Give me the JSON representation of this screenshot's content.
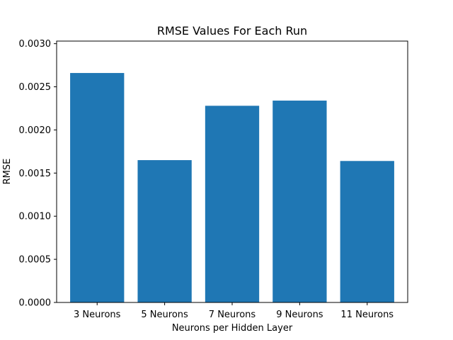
{
  "chart_data": {
    "type": "bar",
    "title": "RMSE Values For Each Run",
    "xlabel": "Neurons per Hidden Layer",
    "ylabel": "RMSE",
    "categories": [
      "3 Neurons",
      "5 Neurons",
      "7 Neurons",
      "9 Neurons",
      "11 Neurons"
    ],
    "values": [
      0.00266,
      0.00165,
      0.00228,
      0.00234,
      0.00164
    ],
    "ylim": [
      0,
      0.00303
    ],
    "yticks": [
      0.0,
      0.0005,
      0.001,
      0.0015,
      0.002,
      0.0025,
      0.003
    ],
    "ytick_labels": [
      "0.0000",
      "0.0005",
      "0.0010",
      "0.0015",
      "0.0020",
      "0.0025",
      "0.0030"
    ],
    "grid": false,
    "colors": {
      "bar": "#1f77b4",
      "axes": "#000000"
    }
  }
}
